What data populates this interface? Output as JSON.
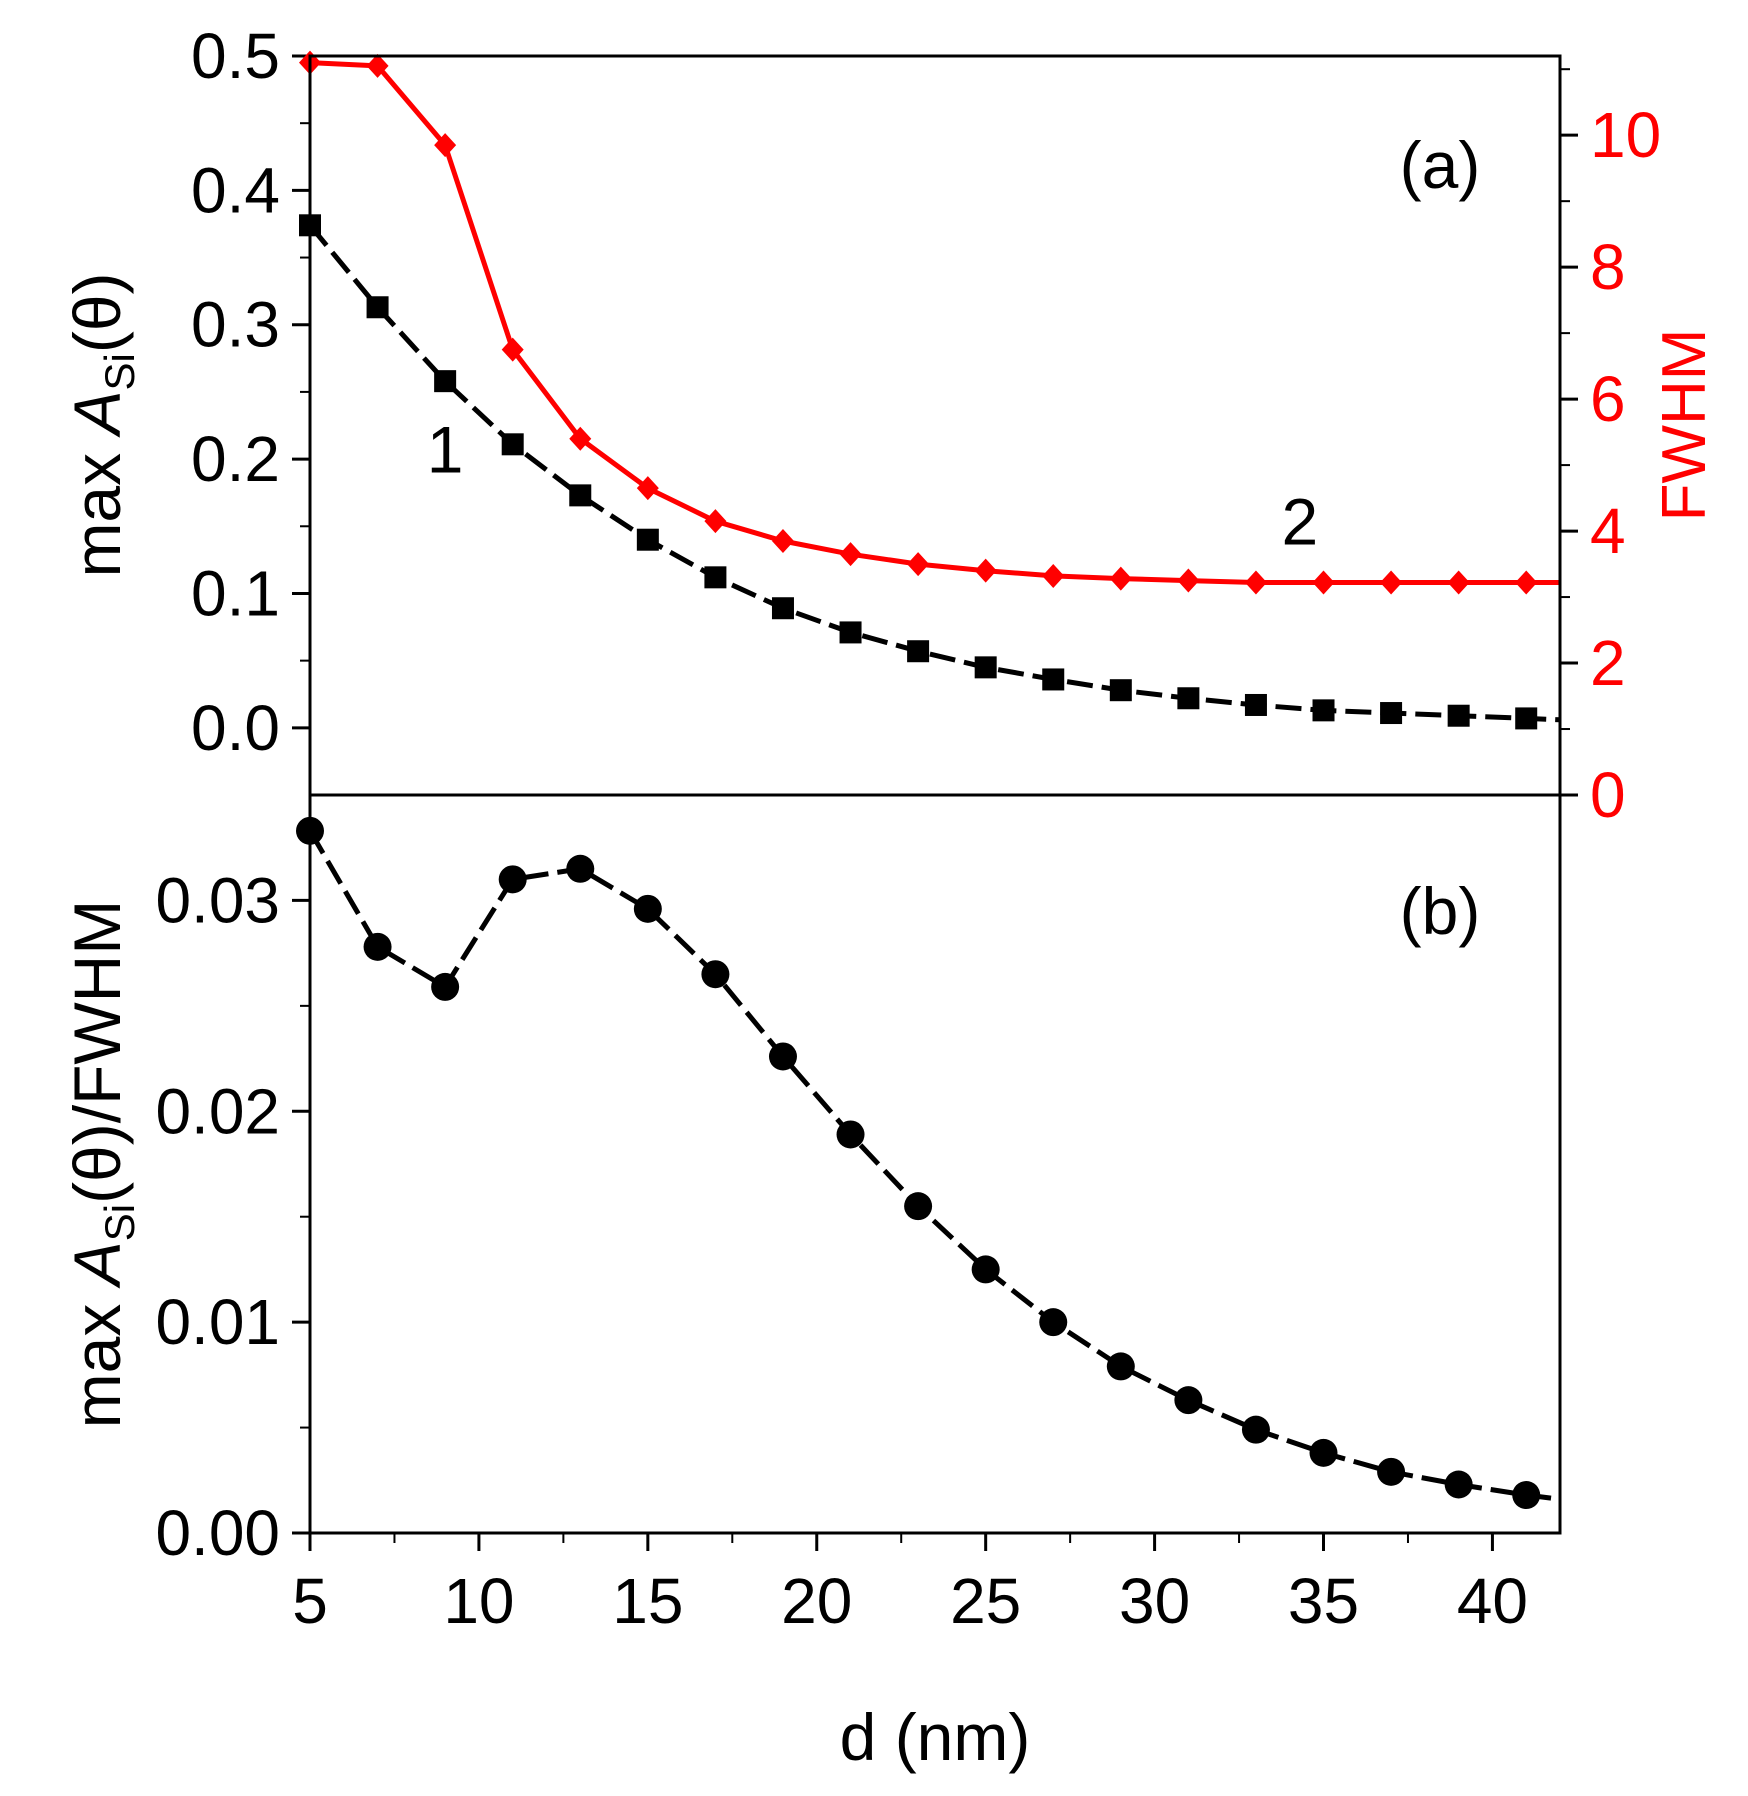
{
  "chart_data": [
    {
      "panel": "a",
      "type": "line",
      "panel_label": "(a)",
      "xlabel": "d (nm)",
      "xlim": [
        5,
        42
      ],
      "xticks": [
        5,
        10,
        15,
        20,
        25,
        30,
        35,
        40
      ],
      "ylabel_left": {
        "prefix": "max ",
        "italic": "A",
        "sub": "Si",
        "suffix": "(θ)"
      },
      "ylim_left": [
        -0.05,
        0.5
      ],
      "yticks_left": [
        "0.0",
        "0.1",
        "0.2",
        "0.3",
        "0.4",
        "0.5"
      ],
      "ylabel_right": "FWHM",
      "ylim_right": [
        0,
        11.2
      ],
      "yticks_right": [
        "0",
        "2",
        "4",
        "6",
        "8",
        "10"
      ],
      "series": [
        {
          "name": "1",
          "axis": "left",
          "color": "#000000",
          "marker": "square",
          "line": "dashed",
          "x": [
            5,
            7,
            9,
            11,
            13,
            15,
            17,
            19,
            21,
            23,
            25,
            27,
            29,
            31,
            33,
            35,
            37,
            39,
            41
          ],
          "y": [
            0.374,
            0.313,
            0.258,
            0.211,
            0.173,
            0.14,
            0.112,
            0.089,
            0.071,
            0.057,
            0.045,
            0.036,
            0.028,
            0.022,
            0.017,
            0.013,
            0.011,
            0.009,
            0.007
          ],
          "tail": {
            "x": 42,
            "y": 0.006
          }
        },
        {
          "name": "2",
          "axis": "right",
          "color": "#ff0000",
          "marker": "diamond",
          "line": "solid",
          "x": [
            5,
            7,
            9,
            11,
            13,
            15,
            17,
            19,
            21,
            23,
            25,
            27,
            29,
            31,
            33,
            35,
            37,
            39,
            41
          ],
          "y": [
            11.1,
            11.05,
            9.85,
            6.75,
            5.4,
            4.65,
            4.15,
            3.85,
            3.65,
            3.5,
            3.4,
            3.32,
            3.28,
            3.25,
            3.22,
            3.22,
            3.22,
            3.22,
            3.22
          ],
          "tail": {
            "x": 42,
            "y": 3.22
          }
        }
      ],
      "annotations": [
        {
          "text": "1",
          "x": 9.0,
          "y": 0.19,
          "axis": "left"
        },
        {
          "text": "2",
          "x": 34.3,
          "y": 3.8,
          "axis": "right"
        }
      ]
    },
    {
      "panel": "b",
      "type": "line",
      "panel_label": "(b)",
      "xlabel": "d (nm)",
      "xlim": [
        5,
        42
      ],
      "xticks": [
        5,
        10,
        15,
        20,
        25,
        30,
        35,
        40
      ],
      "ylabel": {
        "prefix": "max ",
        "italic": "A",
        "sub": "Si",
        "suffix": "(θ)/FWHM"
      },
      "ylim": [
        0,
        0.035
      ],
      "yticks": [
        "0.00",
        "0.01",
        "0.02",
        "0.03"
      ],
      "series": [
        {
          "color": "#000000",
          "marker": "circle",
          "line": "dashed",
          "x": [
            5,
            7,
            9,
            11,
            13,
            15,
            17,
            19,
            21,
            23,
            25,
            27,
            29,
            31,
            33,
            35,
            37,
            39,
            41
          ],
          "y": [
            0.0333,
            0.0278,
            0.0259,
            0.031,
            0.0315,
            0.0296,
            0.0265,
            0.0226,
            0.0189,
            0.0155,
            0.0125,
            0.01,
            0.0079,
            0.0063,
            0.0049,
            0.0038,
            0.0029,
            0.0023,
            0.0018
          ],
          "tail": {
            "x": 42,
            "y": 0.0016
          }
        }
      ]
    }
  ]
}
